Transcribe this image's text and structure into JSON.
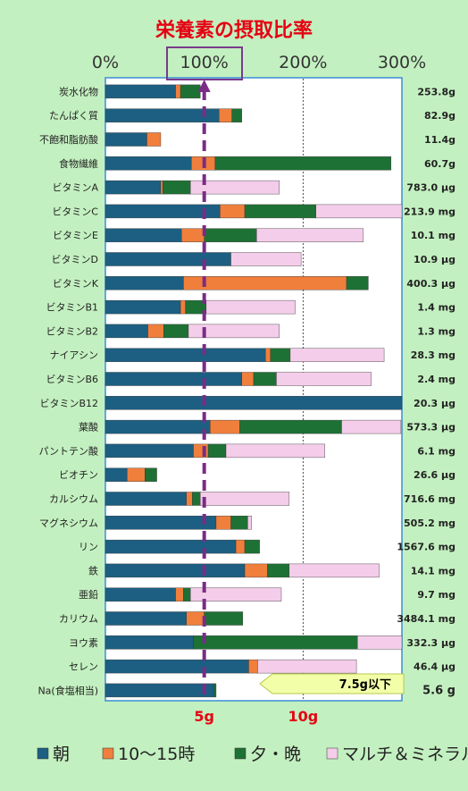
{
  "chart_data": {
    "type": "bar",
    "stacked": true,
    "orientation": "horizontal",
    "title": "栄養素の摂取比率",
    "x_ticks": [
      "0%",
      "100%",
      "200%",
      "300%"
    ],
    "xlim": [
      0,
      300
    ],
    "bottom_ticks": [
      "5g",
      "10g"
    ],
    "categories": [
      "炭水化物",
      "たんぱく質",
      "不飽和脂肪酸",
      "食物繊維",
      "ビタミンA",
      "ビタミンC",
      "ビタミンE",
      "ビタミンD",
      "ビタミンK",
      "ビタミンB1",
      "ビタミンB2",
      "ナイアシン",
      "ビタミンB6",
      "ビタミンB12",
      "葉酸",
      "パントテン酸",
      "ビオチン",
      "カルシウム",
      "マグネシウム",
      "リン",
      "鉄",
      "亜鉛",
      "カリウム",
      "ヨウ素",
      "セレン",
      "Na(食塩相当)"
    ],
    "intake_labels": [
      "253.8g",
      "82.9g",
      "11.4g",
      "60.7g",
      "783.0 μg",
      "213.9 mg",
      "10.1 mg",
      "10.9 μg",
      "400.3 μg",
      "1.4 mg",
      "1.3 mg",
      "28.3 mg",
      "2.4 mg",
      "20.3 μg",
      "573.3 μg",
      "6.1 mg",
      "26.6 μg",
      "716.6 mg",
      "505.2 mg",
      "1567.6 mg",
      "14.1 mg",
      "9.7 mg",
      "3484.1 mg",
      "332.3 μg",
      "46.4 μg",
      "5.6 g"
    ],
    "series": [
      {
        "name": "朝",
        "color": "#1c5f82",
        "values": [
          71,
          115,
          42,
          87,
          56,
          116,
          77,
          127,
          79,
          76,
          43,
          162,
          138,
          300,
          106,
          89,
          22,
          82,
          112,
          132,
          141,
          71,
          82,
          89,
          145,
          110
        ]
      },
      {
        "name": "10〜15時",
        "color": "#f07f3c",
        "values": [
          5,
          13,
          14,
          24,
          2,
          25,
          23,
          0,
          165,
          5,
          16,
          5,
          12,
          0,
          30,
          15,
          18,
          6,
          15,
          9,
          23,
          8,
          18,
          0,
          9,
          0
        ]
      },
      {
        "name": "夕・晩",
        "color": "#1e7134",
        "values": [
          20,
          10,
          0,
          178,
          28,
          72,
          53,
          0,
          22,
          21,
          25,
          20,
          23,
          0,
          103,
          18,
          12,
          8,
          17,
          15,
          22,
          7,
          39,
          166,
          0,
          2
        ]
      },
      {
        "name": "マルチ＆ミネラル",
        "color": "#f4cdea",
        "values": [
          0,
          0,
          0,
          0,
          90,
          87,
          108,
          71,
          0,
          90,
          92,
          95,
          96,
          0,
          60,
          100,
          0,
          90,
          4,
          0,
          91,
          92,
          0,
          45,
          100,
          0
        ]
      }
    ],
    "na_limit_label": "7.5g以下",
    "reference_line_value": 100,
    "grid": true,
    "legend": "bottom"
  }
}
